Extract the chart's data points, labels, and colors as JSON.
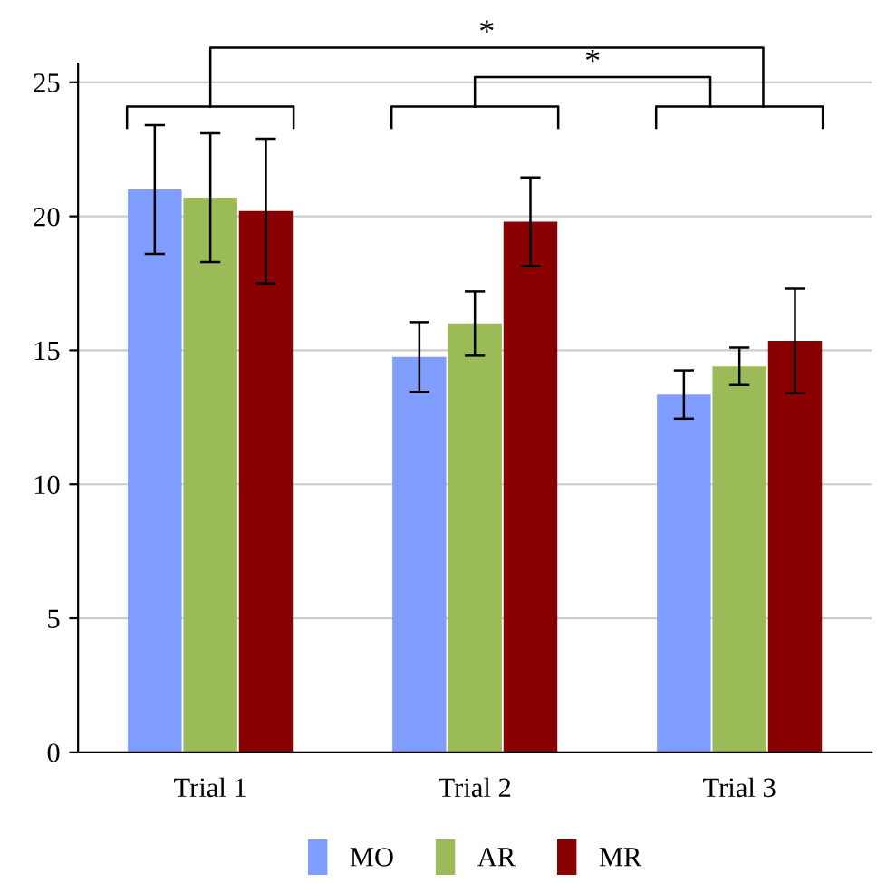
{
  "chart_data": {
    "type": "bar",
    "categories": [
      "Trial 1",
      "Trial 2",
      "Trial 3"
    ],
    "series": [
      {
        "name": "MO",
        "color": "#809eff",
        "values": [
          21.0,
          14.75,
          13.35
        ],
        "errors": [
          2.4,
          1.3,
          0.9
        ]
      },
      {
        "name": "AR",
        "color": "#9bbb59",
        "values": [
          20.7,
          16.0,
          14.4
        ],
        "errors": [
          2.4,
          1.2,
          0.7
        ]
      },
      {
        "name": "MR",
        "color": "#880000",
        "values": [
          20.2,
          19.8,
          15.35
        ],
        "errors": [
          2.7,
          1.65,
          1.95
        ]
      }
    ],
    "ylim": [
      0,
      25.7
    ],
    "yticks": [
      0,
      5,
      10,
      15,
      20,
      25
    ],
    "grid": "y",
    "legend": "bottom",
    "annotations": [
      "*",
      "*"
    ]
  }
}
